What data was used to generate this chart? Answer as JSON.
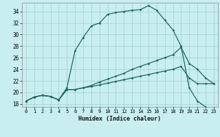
{
  "xlabel": "Humidex (Indice chaleur)",
  "bg_color": "#c8eef0",
  "grid_color": "#a0ccc8",
  "line_color": "#1a6655",
  "xlim": [
    -0.5,
    23.5
  ],
  "ylim": [
    17.5,
    35.5
  ],
  "xticks": [
    0,
    1,
    2,
    3,
    4,
    5,
    6,
    7,
    8,
    9,
    10,
    11,
    12,
    13,
    14,
    15,
    16,
    17,
    18,
    19,
    20,
    21,
    22,
    23
  ],
  "yticks": [
    18,
    20,
    22,
    24,
    26,
    28,
    30,
    32,
    34
  ],
  "line1_x": [
    0,
    1,
    2,
    3,
    4,
    5,
    6,
    7,
    8,
    9,
    10,
    11,
    12,
    13,
    14,
    15,
    16,
    17,
    18,
    19,
    20,
    21,
    22,
    23
  ],
  "line1_y": [
    18.5,
    19.2,
    19.5,
    19.3,
    18.7,
    20.8,
    27.2,
    29.5,
    31.5,
    32.0,
    33.5,
    33.8,
    34.0,
    34.2,
    34.3,
    35.0,
    34.2,
    32.5,
    30.8,
    28.0,
    20.8,
    18.5,
    17.5,
    17.0
  ],
  "line2_x": [
    0,
    1,
    2,
    3,
    4,
    5,
    6,
    7,
    8,
    9,
    10,
    11,
    12,
    13,
    14,
    15,
    16,
    17,
    18,
    19,
    20,
    21,
    22,
    23
  ],
  "line2_y": [
    18.5,
    19.2,
    19.5,
    19.3,
    18.7,
    20.5,
    20.5,
    20.8,
    21.2,
    21.8,
    22.3,
    22.8,
    23.3,
    24.0,
    24.5,
    25.0,
    25.5,
    26.0,
    26.5,
    27.8,
    25.0,
    24.0,
    22.5,
    21.5
  ],
  "line3_x": [
    0,
    1,
    2,
    3,
    4,
    5,
    6,
    7,
    8,
    9,
    10,
    11,
    12,
    13,
    14,
    15,
    16,
    17,
    18,
    19,
    20,
    21,
    22,
    23
  ],
  "line3_y": [
    18.5,
    19.2,
    19.5,
    19.3,
    18.7,
    20.5,
    20.5,
    20.8,
    21.0,
    21.3,
    21.6,
    21.9,
    22.2,
    22.5,
    22.8,
    23.1,
    23.4,
    23.7,
    24.0,
    24.5,
    22.5,
    21.5,
    21.5,
    21.5
  ],
  "xlabel_fontsize": 6,
  "tick_fontsize": 5
}
